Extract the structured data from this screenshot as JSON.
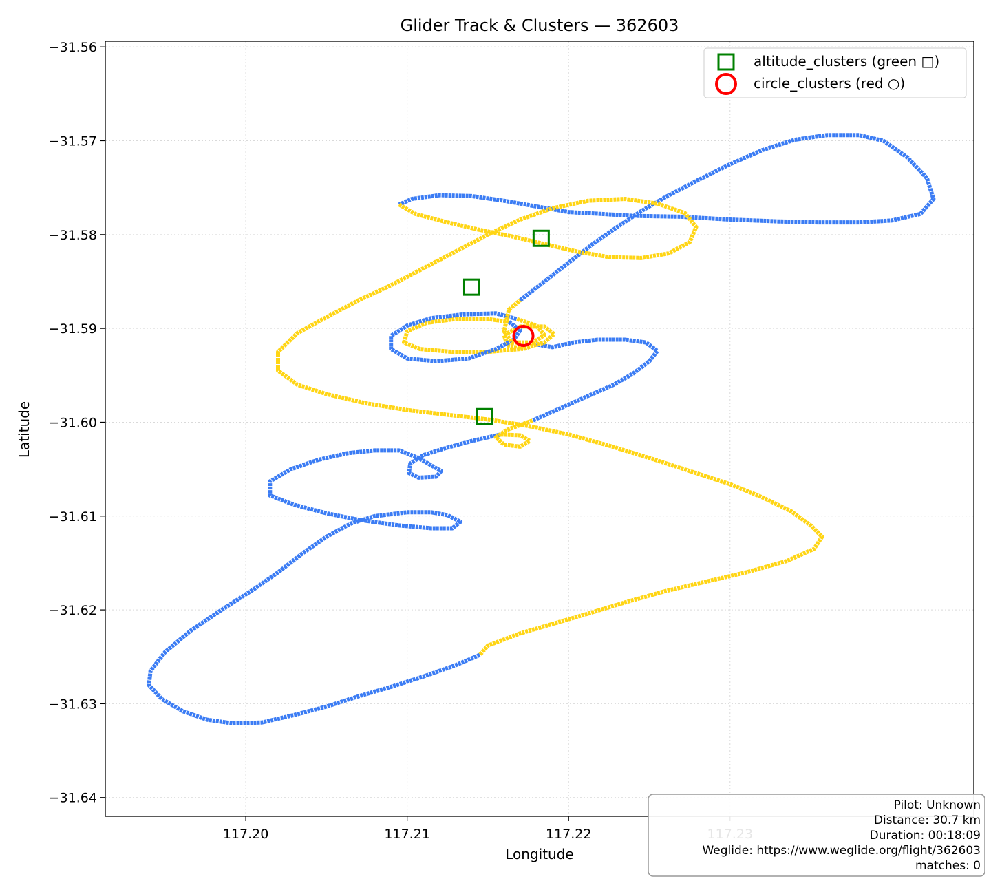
{
  "chart_data": {
    "type": "line",
    "title": "Glider Track & Clusters — 362603",
    "xlabel": "Longitude",
    "ylabel": "Latitude",
    "xlim": [
      117.1913,
      117.2451
    ],
    "ylim": [
      -31.642,
      -31.5594
    ],
    "xticks": [
      "117.20",
      "117.21",
      "117.22",
      "117.23"
    ],
    "xtick_values": [
      117.2,
      117.21,
      117.22,
      117.23
    ],
    "yticks": [
      "−31.56",
      "−31.57",
      "−31.58",
      "−31.59",
      "−31.60",
      "−31.61",
      "−31.62",
      "−31.63",
      "−31.64"
    ],
    "ytick_values": [
      -31.56,
      -31.57,
      -31.58,
      -31.59,
      -31.6,
      -31.61,
      -31.62,
      -31.63,
      -31.64
    ],
    "grid": true,
    "legend_position": "top-right",
    "legend": [
      {
        "label": "altitude_clusters (green □)",
        "marker": "square",
        "color": "#008000"
      },
      {
        "label": "circle_clusters (red ○)",
        "marker": "circle",
        "color": "#ff0000"
      }
    ],
    "track_colors": {
      "blue": "#3b7cf4",
      "yellow": "#ffd514"
    },
    "series": [
      {
        "name": "altitude_clusters (green □)",
        "marker": "square",
        "color": "#008000",
        "x": [
          117.2183,
          117.214,
          117.2148
        ],
        "y": [
          -31.5804,
          -31.5856,
          -31.5994
        ]
      },
      {
        "name": "circle_clusters (red ○)",
        "marker": "circle",
        "color": "#ff0000",
        "x": [
          117.2172
        ],
        "y": [
          -31.5908
        ]
      }
    ],
    "track_segments": [
      {
        "color": "blue",
        "points": [
          [
            117.2145,
            -31.6248
          ],
          [
            117.213,
            -31.6259
          ],
          [
            117.211,
            -31.6271
          ],
          [
            117.209,
            -31.6282
          ],
          [
            117.207,
            -31.6292
          ],
          [
            117.205,
            -31.6303
          ],
          [
            117.203,
            -31.6312
          ],
          [
            117.201,
            -31.632
          ],
          [
            117.1992,
            -31.6321
          ],
          [
            117.1976,
            -31.6317
          ],
          [
            117.1961,
            -31.6308
          ],
          [
            117.1948,
            -31.6295
          ],
          [
            117.194,
            -31.628
          ],
          [
            117.1941,
            -31.6265
          ],
          [
            117.195,
            -31.6245
          ],
          [
            117.1966,
            -31.6222
          ],
          [
            117.1985,
            -31.62
          ],
          [
            117.2005,
            -31.6178
          ],
          [
            117.202,
            -31.616
          ],
          [
            117.2035,
            -31.614
          ],
          [
            117.205,
            -31.6122
          ],
          [
            117.2065,
            -31.6108
          ],
          [
            117.208,
            -31.61
          ],
          [
            117.21,
            -31.6096
          ],
          [
            117.2115,
            -31.6096
          ],
          [
            117.2125,
            -31.6099
          ],
          [
            117.2133,
            -31.6106
          ],
          [
            117.2128,
            -31.6113
          ],
          [
            117.2115,
            -31.6113
          ],
          [
            117.2095,
            -31.611
          ],
          [
            117.207,
            -31.6104
          ],
          [
            117.205,
            -31.6097
          ],
          [
            117.203,
            -31.6088
          ],
          [
            117.2015,
            -31.6078
          ],
          [
            117.2015,
            -31.6063
          ],
          [
            117.2028,
            -31.605
          ],
          [
            117.2045,
            -31.604
          ],
          [
            117.2063,
            -31.6033
          ],
          [
            117.208,
            -31.603
          ],
          [
            117.2095,
            -31.603
          ],
          [
            117.2107,
            -31.6038
          ],
          [
            117.2115,
            -31.6046
          ],
          [
            117.2121,
            -31.6052
          ],
          [
            117.2118,
            -31.6058
          ],
          [
            117.2107,
            -31.6059
          ],
          [
            117.2101,
            -31.6054
          ],
          [
            117.2102,
            -31.6044
          ],
          [
            117.211,
            -31.6035
          ],
          [
            117.2123,
            -31.6028
          ],
          [
            117.214,
            -31.602
          ],
          [
            117.2158,
            -31.6013
          ]
        ]
      },
      {
        "color": "yellow",
        "points": [
          [
            117.2158,
            -31.6013
          ],
          [
            117.217,
            -31.6014
          ],
          [
            117.2176,
            -31.602
          ],
          [
            117.217,
            -31.6026
          ],
          [
            117.216,
            -31.6024
          ],
          [
            117.2155,
            -31.6016
          ],
          [
            117.2162,
            -31.6008
          ],
          [
            117.2178,
            -31.5998
          ]
        ]
      },
      {
        "color": "blue",
        "points": [
          [
            117.2178,
            -31.5998
          ],
          [
            117.2195,
            -31.5985
          ],
          [
            117.2212,
            -31.5972
          ],
          [
            117.2228,
            -31.596
          ],
          [
            117.224,
            -31.5948
          ],
          [
            117.225,
            -31.5935
          ],
          [
            117.2255,
            -31.5924
          ],
          [
            117.2248,
            -31.5915
          ],
          [
            117.2235,
            -31.5912
          ],
          [
            117.2218,
            -31.5912
          ],
          [
            117.2203,
            -31.5915
          ],
          [
            117.219,
            -31.592
          ],
          [
            117.218,
            -31.5917
          ]
        ]
      },
      {
        "color": "yellow",
        "points": [
          [
            117.218,
            -31.5917
          ],
          [
            117.2172,
            -31.5922
          ],
          [
            117.2162,
            -31.5918
          ],
          [
            117.216,
            -31.5907
          ],
          [
            117.217,
            -31.5898
          ],
          [
            117.2185,
            -31.5898
          ],
          [
            117.2191,
            -31.5906
          ],
          [
            117.2185,
            -31.5915
          ],
          [
            117.217,
            -31.5922
          ],
          [
            117.215,
            -31.5925
          ],
          [
            117.2128,
            -31.5925
          ],
          [
            117.2108,
            -31.5922
          ],
          [
            117.2098,
            -31.5915
          ],
          [
            117.21,
            -31.5903
          ],
          [
            117.2112,
            -31.5894
          ],
          [
            117.213,
            -31.589
          ],
          [
            117.215,
            -31.589
          ],
          [
            117.2163,
            -31.5893
          ]
        ]
      },
      {
        "color": "blue",
        "points": [
          [
            117.2163,
            -31.5893
          ],
          [
            117.217,
            -31.5902
          ],
          [
            117.2166,
            -31.5912
          ],
          [
            117.2155,
            -31.5922
          ],
          [
            117.2138,
            -31.5932
          ],
          [
            117.2118,
            -31.5935
          ],
          [
            117.21,
            -31.5932
          ],
          [
            117.209,
            -31.5922
          ],
          [
            117.209,
            -31.5908
          ],
          [
            117.21,
            -31.5897
          ],
          [
            117.2115,
            -31.5889
          ],
          [
            117.2135,
            -31.5885
          ],
          [
            117.2155,
            -31.5884
          ],
          [
            117.2168,
            -31.589
          ]
        ]
      },
      {
        "color": "yellow",
        "points": [
          [
            117.2168,
            -31.589
          ],
          [
            117.218,
            -31.5897
          ],
          [
            117.2185,
            -31.5907
          ],
          [
            117.2178,
            -31.5915
          ],
          [
            117.2165,
            -31.5915
          ],
          [
            117.216,
            -31.5903
          ],
          [
            117.2163,
            -31.588
          ],
          [
            117.217,
            -31.587
          ]
        ]
      },
      {
        "color": "blue",
        "points": [
          [
            117.217,
            -31.587
          ],
          [
            117.2185,
            -31.585
          ],
          [
            117.22,
            -31.583
          ],
          [
            117.2215,
            -31.581
          ],
          [
            117.223,
            -31.5792
          ],
          [
            117.2245,
            -31.5775
          ],
          [
            117.226,
            -31.576
          ],
          [
            117.228,
            -31.5742
          ],
          [
            117.23,
            -31.5725
          ],
          [
            117.232,
            -31.571
          ],
          [
            117.234,
            -31.5699
          ],
          [
            117.236,
            -31.5694
          ],
          [
            117.238,
            -31.5694
          ],
          [
            117.2395,
            -31.57
          ],
          [
            117.241,
            -31.5718
          ],
          [
            117.2422,
            -31.574
          ],
          [
            117.2426,
            -31.5762
          ],
          [
            117.2418,
            -31.5778
          ],
          [
            117.24,
            -31.5785
          ],
          [
            117.238,
            -31.5787
          ],
          [
            117.2355,
            -31.5787
          ],
          [
            117.233,
            -31.5786
          ],
          [
            117.23,
            -31.5784
          ],
          [
            117.227,
            -31.5781
          ],
          [
            117.224,
            -31.578
          ],
          [
            117.222,
            -31.5778
          ],
          [
            117.22,
            -31.5776
          ],
          [
            117.218,
            -31.577
          ],
          [
            117.216,
            -31.5764
          ],
          [
            117.214,
            -31.5759
          ],
          [
            117.212,
            -31.5758
          ],
          [
            117.2103,
            -31.5762
          ],
          [
            117.2095,
            -31.5768
          ]
        ]
      },
      {
        "color": "yellow",
        "points": [
          [
            117.2095,
            -31.5768
          ],
          [
            117.2105,
            -31.5778
          ],
          [
            117.2125,
            -31.5787
          ],
          [
            117.2145,
            -31.5795
          ],
          [
            117.2165,
            -31.5802
          ],
          [
            117.2185,
            -31.581
          ],
          [
            117.2205,
            -31.5818
          ],
          [
            117.2225,
            -31.5824
          ],
          [
            117.2245,
            -31.5825
          ],
          [
            117.2262,
            -31.582
          ],
          [
            117.2275,
            -31.5808
          ],
          [
            117.2279,
            -31.5792
          ],
          [
            117.2272,
            -31.5777
          ],
          [
            117.2255,
            -31.5767
          ],
          [
            117.2235,
            -31.5762
          ],
          [
            117.2212,
            -31.5764
          ],
          [
            117.219,
            -31.5772
          ],
          [
            117.217,
            -31.5784
          ],
          [
            117.215,
            -31.58
          ],
          [
            117.213,
            -31.5818
          ],
          [
            117.211,
            -31.5836
          ],
          [
            117.209,
            -31.5854
          ],
          [
            117.207,
            -31.587
          ],
          [
            117.205,
            -31.5888
          ],
          [
            117.2032,
            -31.5905
          ],
          [
            117.202,
            -31.5925
          ],
          [
            117.202,
            -31.5945
          ],
          [
            117.2032,
            -31.596
          ],
          [
            117.205,
            -31.597
          ],
          [
            117.2075,
            -31.598
          ],
          [
            117.21,
            -31.5987
          ],
          [
            117.2125,
            -31.5992
          ],
          [
            117.215,
            -31.5997
          ],
          [
            117.2175,
            -31.6004
          ],
          [
            117.22,
            -31.6013
          ],
          [
            117.2225,
            -31.6025
          ],
          [
            117.225,
            -31.6038
          ],
          [
            117.2275,
            -31.6052
          ],
          [
            117.23,
            -31.6066
          ],
          [
            117.232,
            -31.608
          ],
          [
            117.2338,
            -31.6095
          ],
          [
            117.235,
            -31.611
          ],
          [
            117.2357,
            -31.6122
          ],
          [
            117.2352,
            -31.6135
          ],
          [
            117.2335,
            -31.6148
          ],
          [
            117.231,
            -31.616
          ],
          [
            117.2285,
            -31.617
          ],
          [
            117.226,
            -31.618
          ],
          [
            117.2235,
            -31.6192
          ],
          [
            117.221,
            -31.6205
          ],
          [
            117.219,
            -31.6215
          ],
          [
            117.217,
            -31.6225
          ],
          [
            117.215,
            -31.6238
          ],
          [
            117.2145,
            -31.6248
          ]
        ]
      }
    ]
  },
  "info_box": {
    "pilot": "Pilot: Unknown",
    "distance": "Distance: 30.7 km",
    "duration": "Duration: 00:18:09",
    "weglide": "Weglide: https://www.weglide.org/flight/362603",
    "matches": "matches: 0"
  }
}
